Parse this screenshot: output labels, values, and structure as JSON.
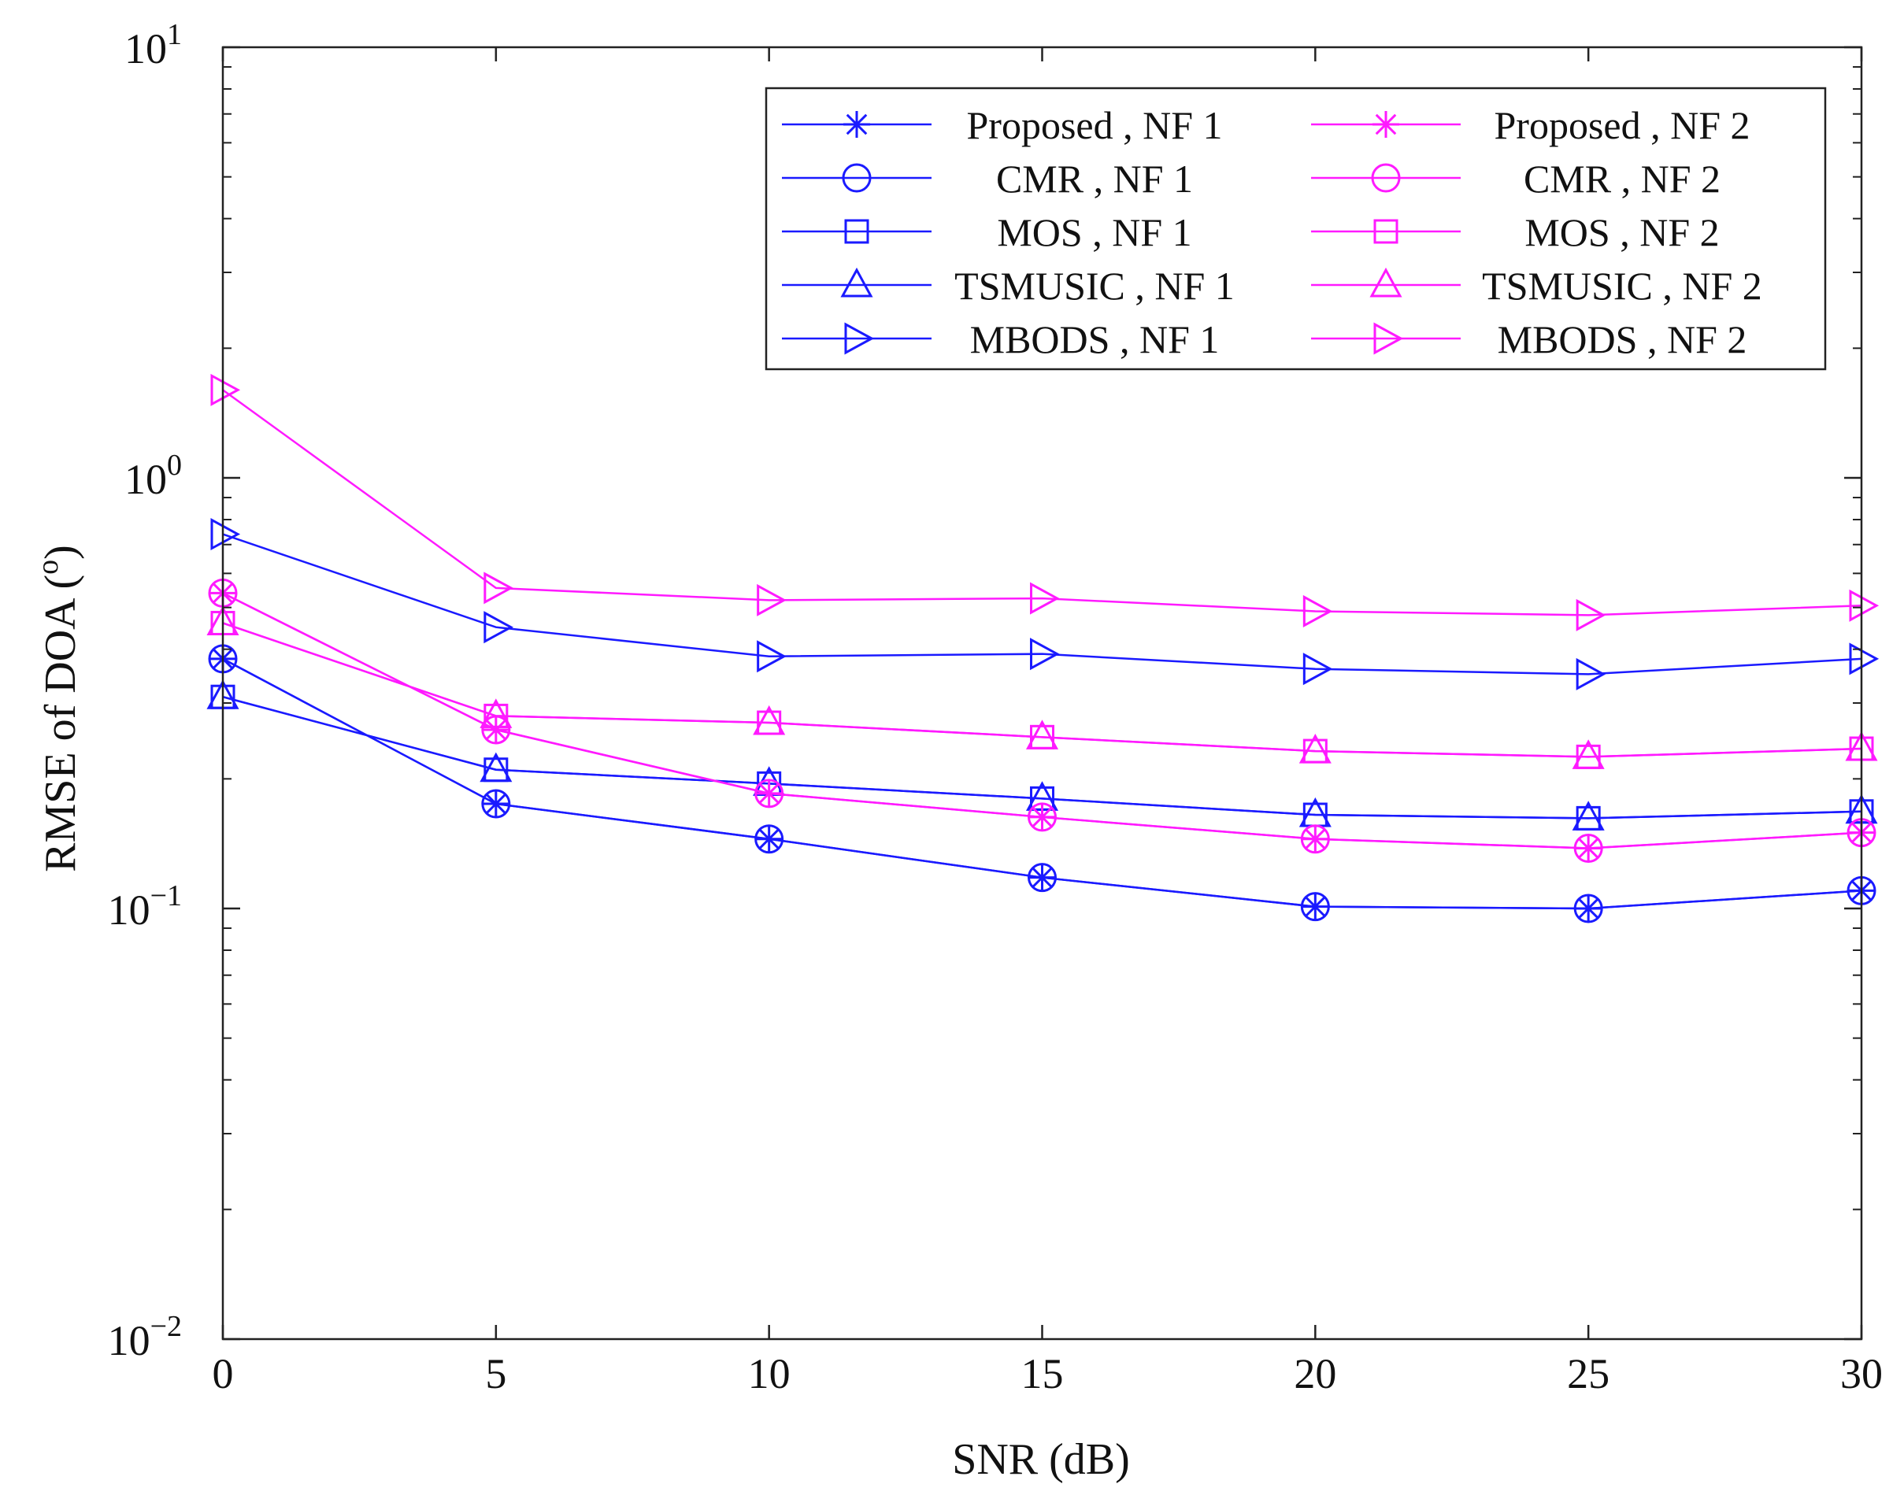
{
  "chart_data": {
    "type": "line",
    "title": "",
    "xlabel": "SNR (dB)",
    "ylabel": "RMSE  of  DOA (°)",
    "ylabel_main": "RMSE  of  DOA (",
    "ylabel_sup": "o",
    "ylabel_end": ")",
    "xscale": "linear",
    "yscale": "log",
    "xlim": [
      0,
      30
    ],
    "ylim": [
      0.01,
      10
    ],
    "grid": false,
    "legend_position": "top-right",
    "x": [
      0,
      5,
      10,
      15,
      20,
      25,
      30
    ],
    "xticks": [
      "0",
      "5",
      "10",
      "15",
      "20",
      "25",
      "30"
    ],
    "yticks": [
      {
        "value": 0.01,
        "base": "10",
        "exp": "−2"
      },
      {
        "value": 0.1,
        "base": "10",
        "exp": "−1"
      },
      {
        "value": 1,
        "base": "10",
        "exp": "0"
      },
      {
        "value": 10,
        "base": "10",
        "exp": "1"
      }
    ],
    "series": [
      {
        "name": "Proposed , NF 1",
        "color": "#1a1aff",
        "marker": "asterisk",
        "values": [
          0.38,
          0.175,
          0.145,
          0.118,
          0.101,
          0.1,
          0.11
        ]
      },
      {
        "name": "CMR , NF 1",
        "color": "#1a1aff",
        "marker": "circle",
        "values": [
          0.38,
          0.175,
          0.145,
          0.118,
          0.101,
          0.1,
          0.11
        ]
      },
      {
        "name": "MOS , NF 1",
        "color": "#1a1aff",
        "marker": "square",
        "values": [
          0.31,
          0.21,
          0.195,
          0.18,
          0.165,
          0.162,
          0.168
        ]
      },
      {
        "name": "TSMUSIC , NF 1",
        "color": "#1a1aff",
        "marker": "triangle-up",
        "values": [
          0.31,
          0.21,
          0.195,
          0.18,
          0.165,
          0.162,
          0.168
        ]
      },
      {
        "name": "MBODS , NF 1",
        "color": "#1a1aff",
        "marker": "triangle-right",
        "values": [
          0.74,
          0.45,
          0.385,
          0.39,
          0.36,
          0.35,
          0.38
        ]
      },
      {
        "name": "Proposed , NF 2",
        "color": "#ff1aff",
        "marker": "asterisk",
        "values": [
          0.54,
          0.26,
          0.185,
          0.163,
          0.145,
          0.138,
          0.15
        ]
      },
      {
        "name": "CMR , NF 2",
        "color": "#ff1aff",
        "marker": "circle",
        "values": [
          0.54,
          0.26,
          0.185,
          0.163,
          0.145,
          0.138,
          0.15
        ]
      },
      {
        "name": "MOS , NF 2",
        "color": "#ff1aff",
        "marker": "square",
        "values": [
          0.46,
          0.28,
          0.27,
          0.25,
          0.232,
          0.225,
          0.235
        ]
      },
      {
        "name": "TSMUSIC , NF 2",
        "color": "#ff1aff",
        "marker": "triangle-up",
        "values": [
          0.46,
          0.28,
          0.27,
          0.25,
          0.232,
          0.225,
          0.235
        ]
      },
      {
        "name": "MBODS , NF 2",
        "color": "#ff1aff",
        "marker": "triangle-right",
        "values": [
          1.6,
          0.555,
          0.52,
          0.525,
          0.49,
          0.48,
          0.505
        ]
      }
    ]
  }
}
